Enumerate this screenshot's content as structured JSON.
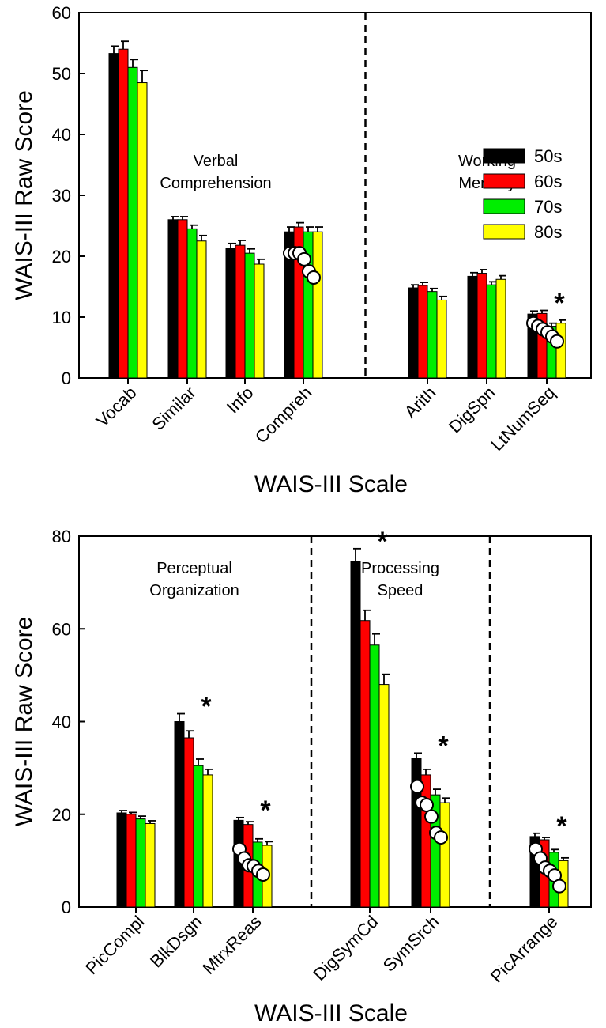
{
  "chart_data": [
    {
      "type": "bar",
      "id": "top",
      "ylabel": "WAIS-III Raw Score",
      "xlabel": "WAIS-III Scale",
      "ylim": [
        0,
        60
      ],
      "yticks": [
        0,
        10,
        20,
        30,
        40,
        50,
        60
      ],
      "legend": {
        "position": "right",
        "entries": [
          {
            "name": "50s",
            "color": "#000000"
          },
          {
            "name": "60s",
            "color": "#ff0000"
          },
          {
            "name": "70s",
            "color": "#00ee00"
          },
          {
            "name": "80s",
            "color": "#ffff00"
          }
        ]
      },
      "categories": [
        "Vocab",
        "Similar",
        "Info",
        "Compreh",
        "Arith",
        "DigSpn",
        "LtNumSeq"
      ],
      "group_labels": [
        {
          "text": [
            "Verbal",
            "Comprehension"
          ],
          "over": [
            0,
            3
          ]
        },
        {
          "text": [
            "Working",
            "Memory"
          ],
          "over": [
            4,
            6
          ]
        }
      ],
      "dividers_after": [
        3
      ],
      "series": [
        {
          "name": "50s",
          "values": [
            53.3,
            26.0,
            21.3,
            24.0,
            14.8,
            16.7,
            10.5
          ],
          "errors": [
            1.2,
            0.5,
            0.8,
            0.8,
            0.5,
            0.6,
            0.5
          ]
        },
        {
          "name": "60s",
          "values": [
            54.0,
            26.0,
            21.8,
            24.8,
            15.2,
            17.2,
            10.6
          ],
          "errors": [
            1.3,
            0.5,
            0.8,
            0.7,
            0.5,
            0.6,
            0.5
          ]
        },
        {
          "name": "70s",
          "values": [
            51.0,
            24.5,
            20.5,
            24.0,
            14.2,
            15.3,
            8.5
          ],
          "errors": [
            1.3,
            0.6,
            0.7,
            0.8,
            0.5,
            0.5,
            0.5
          ]
        },
        {
          "name": "80s",
          "values": [
            48.5,
            22.5,
            18.7,
            24.0,
            12.8,
            16.2,
            9.0
          ],
          "errors": [
            2.0,
            0.9,
            0.8,
            0.8,
            0.6,
            0.6,
            0.5
          ]
        }
      ],
      "significant": [
        6
      ],
      "significance_marker": "*",
      "circles": [
        {
          "cat": 3,
          "values": [
            20.5,
            20.5,
            20.5,
            19.5,
            17.5,
            16.5
          ]
        },
        {
          "cat": 6,
          "values": [
            9.0,
            8.5,
            8.0,
            7.5,
            6.8,
            6.0
          ]
        }
      ]
    },
    {
      "type": "bar",
      "id": "bottom",
      "ylabel": "WAIS-III Raw Score",
      "xlabel": "WAIS-III Scale",
      "ylim": [
        0,
        80
      ],
      "yticks": [
        0,
        20,
        40,
        60,
        80
      ],
      "categories": [
        "PicCompl",
        "BlkDsgn",
        "MtrxReas",
        "DigSymCd",
        "SymSrch",
        "PicArrange"
      ],
      "group_labels": [
        {
          "text": [
            "Perceptual",
            "Organization"
          ],
          "over": [
            0,
            2
          ]
        },
        {
          "text": [
            "Processing",
            "Speed"
          ],
          "over": [
            3,
            4
          ]
        }
      ],
      "dividers_after": [
        2,
        4
      ],
      "series": [
        {
          "name": "50s",
          "values": [
            20.3,
            40.0,
            18.7,
            74.5,
            32.0,
            15.2
          ],
          "errors": [
            0.5,
            1.7,
            0.6,
            2.8,
            1.2,
            0.7
          ]
        },
        {
          "name": "60s",
          "values": [
            20.0,
            36.5,
            17.8,
            61.8,
            28.5,
            14.5
          ],
          "errors": [
            0.4,
            1.5,
            0.6,
            2.2,
            1.2,
            0.5
          ]
        },
        {
          "name": "70s",
          "values": [
            19.0,
            30.5,
            14.0,
            56.5,
            24.2,
            11.8
          ],
          "errors": [
            0.6,
            1.4,
            0.7,
            2.4,
            1.2,
            0.6
          ]
        },
        {
          "name": "80s",
          "values": [
            18.0,
            28.5,
            13.3,
            48.0,
            22.5,
            10.0
          ],
          "errors": [
            0.6,
            1.2,
            0.8,
            2.2,
            1.0,
            0.6
          ]
        }
      ],
      "significant": [
        1,
        2,
        3,
        4,
        5
      ],
      "significance_marker": "*",
      "circles": [
        {
          "cat": 2,
          "values": [
            12.5,
            10.5,
            9.0,
            8.8,
            7.8,
            7.0
          ]
        },
        {
          "cat": 4,
          "values": [
            26.0,
            22.5,
            22.0,
            19.5,
            16.0,
            15.0
          ]
        },
        {
          "cat": 5,
          "values": [
            12.5,
            10.5,
            8.5,
            7.8,
            6.8,
            4.5
          ]
        }
      ]
    }
  ]
}
